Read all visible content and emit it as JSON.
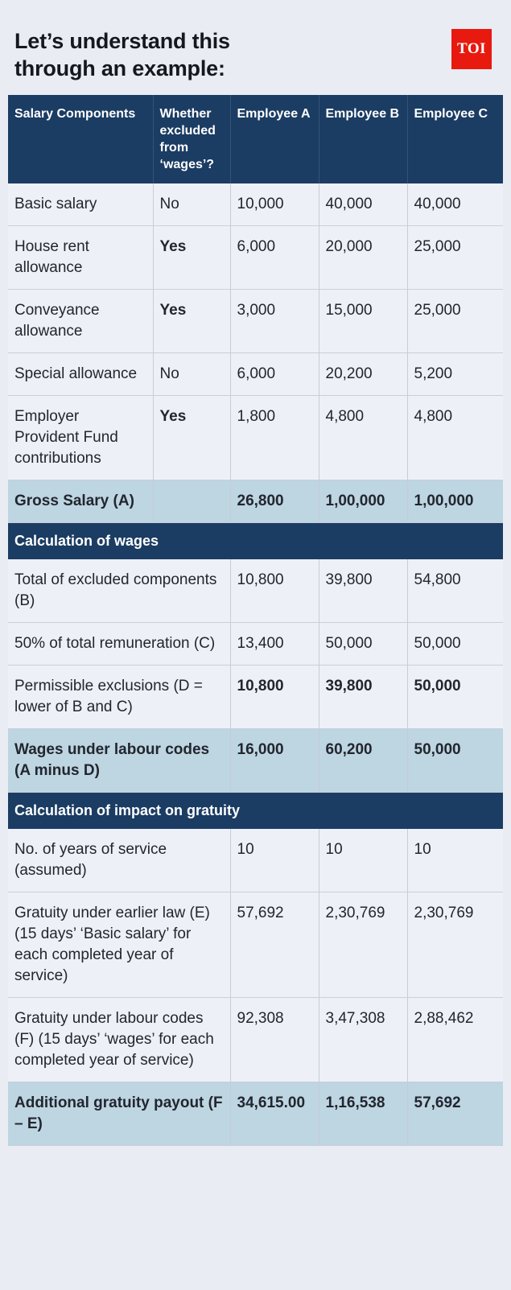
{
  "page": {
    "title_line1": "Let’s understand this",
    "title_line2": "through an example:",
    "logo_text": "TOI"
  },
  "colors": {
    "brand_red": "#e8190f",
    "header_navy": "#1b3c63",
    "highlight_blue": "#bed5e2",
    "page_background": "#eaecf3"
  },
  "table": {
    "columns": [
      "Salary Components",
      "Whether excluded from ‘wages’?",
      "Employee A",
      "Employee B",
      "Employee C"
    ],
    "sections": [
      {
        "header": null,
        "rows": [
          {
            "label": "Basic salary",
            "excluded": "No",
            "excluded_bold": false,
            "values": [
              "10,000",
              "40,000",
              "40,000"
            ],
            "values_bold": false
          },
          {
            "label": "House rent allowance",
            "excluded": "Yes",
            "excluded_bold": true,
            "values": [
              "6,000",
              "20,000",
              "25,000"
            ],
            "values_bold": false
          },
          {
            "label": "Conveyance allowance",
            "excluded": "Yes",
            "excluded_bold": true,
            "values": [
              "3,000",
              "15,000",
              "25,000"
            ],
            "values_bold": false
          },
          {
            "label": "Special allowance",
            "excluded": "No",
            "excluded_bold": false,
            "values": [
              "6,000",
              "20,200",
              "5,200"
            ],
            "values_bold": false
          },
          {
            "label": "Employer Provident Fund contributions",
            "excluded": "Yes",
            "excluded_bold": true,
            "values": [
              "1,800",
              "4,800",
              "4,800"
            ],
            "values_bold": false
          }
        ],
        "total": {
          "label": "Gross Salary (A)",
          "values": [
            "26,800",
            "1,00,000",
            "1,00,000"
          ]
        }
      },
      {
        "header": "Calculation of wages",
        "rows": [
          {
            "label": "Total of excluded components (B)",
            "values": [
              "10,800",
              "39,800",
              "54,800"
            ],
            "values_bold": false
          },
          {
            "label": "50% of total remuneration (C)",
            "values": [
              "13,400",
              "50,000",
              "50,000"
            ],
            "values_bold": false
          },
          {
            "label": "Permissible exclusions (D = lower of B and C)",
            "values": [
              "10,800",
              "39,800",
              "50,000"
            ],
            "values_bold": true
          }
        ],
        "total": {
          "label": "Wages under labour codes (A minus D)",
          "values": [
            "16,000",
            "60,200",
            "50,000"
          ]
        }
      },
      {
        "header": "Calculation of impact on gratuity",
        "rows": [
          {
            "label": "No. of years of service (assumed)",
            "values": [
              "10",
              "10",
              "10"
            ],
            "values_bold": false
          },
          {
            "label": "Gratuity under earlier law (E) (15 days’ ‘Basic salary’ for each completed year of service)",
            "values": [
              "57,692",
              "2,30,769",
              "2,30,769"
            ],
            "values_bold": false
          },
          {
            "label": "Gratuity under labour codes (F) (15 days’ ‘wages’ for each completed year of service)",
            "values": [
              "92,308",
              "3,47,308",
              "2,88,462"
            ],
            "values_bold": false
          }
        ],
        "total": {
          "label": "Additional gratuity payout (F – E)",
          "values": [
            "34,615.00",
            "1,16,538",
            "57,692"
          ]
        }
      }
    ]
  }
}
